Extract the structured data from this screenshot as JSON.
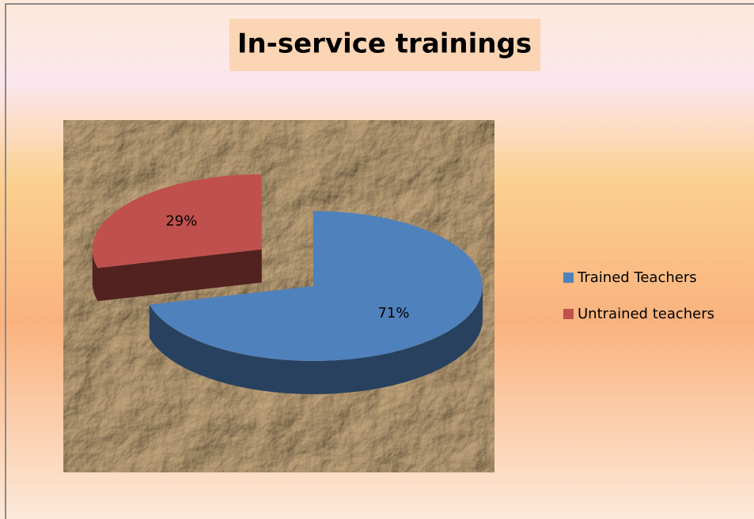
{
  "chart_data": {
    "type": "pie",
    "title": "In-service trainings",
    "categories": [
      "Trained Teachers",
      "Untrained teachers"
    ],
    "values": [
      71,
      29
    ],
    "value_labels": [
      "71%",
      "29%"
    ],
    "colors": [
      "#4f81bd",
      "#c0504d"
    ],
    "legend": "right"
  }
}
